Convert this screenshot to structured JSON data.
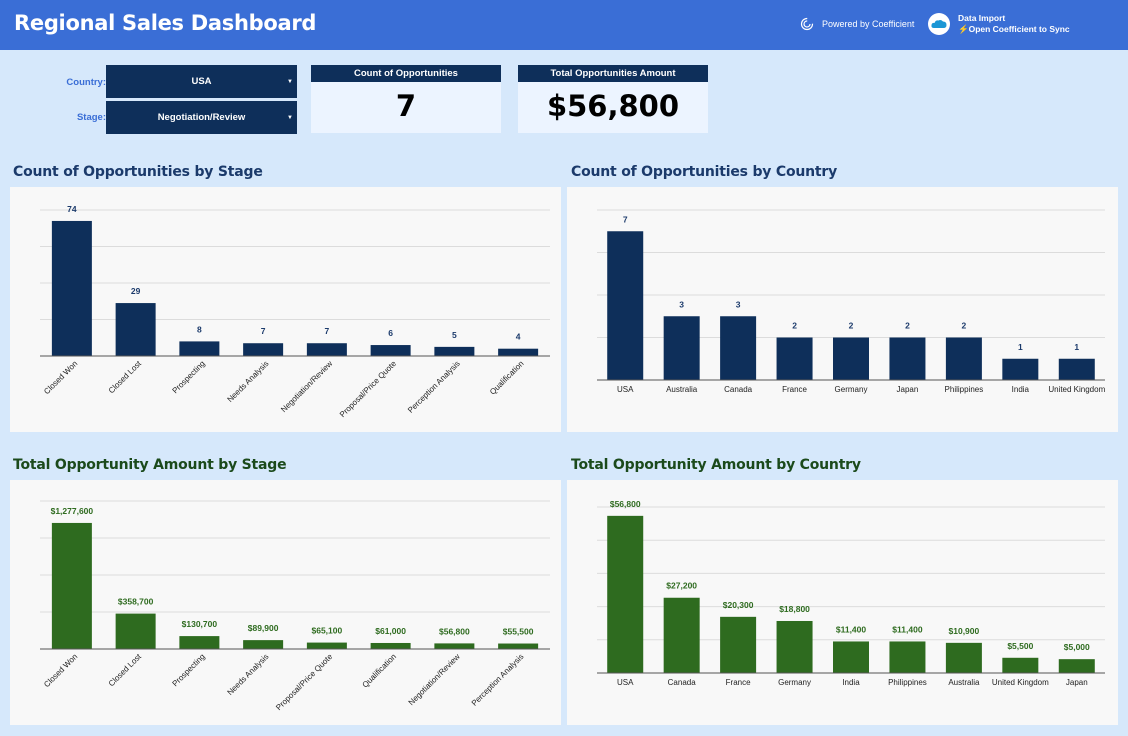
{
  "header": {
    "title": "Regional Sales Dashboard",
    "powered_by": "Powered by Coefficient",
    "data_import": "Data Import",
    "sync_text": "⚡Open Coefficient to Sync",
    "background_color": "#3a6ed6"
  },
  "filters": {
    "country_label": "Country:",
    "country_value": "USA",
    "stage_label": "Stage:",
    "stage_value": "Negotiation/Review"
  },
  "scorecards": [
    {
      "label": "Count of Opportunities",
      "value": "7"
    },
    {
      "label": "Total Opportunities Amount",
      "value": "$56,800"
    }
  ],
  "sections": {
    "count_by_stage": "Count of Opportunities by Stage",
    "count_by_country": "Count of Opportunities by Country",
    "amount_by_stage": "Total Opportunity Amount by Stage",
    "amount_by_country": "Total Opportunity Amount by Country"
  },
  "colors": {
    "navy_bar": "#0e2f5a",
    "green_bar": "#2e6b1f",
    "green_label": "#2e6b1f",
    "navy_label": "#1b3a6b"
  },
  "chart_data": [
    {
      "type": "bar",
      "title": "Count of Opportunities by Stage",
      "categories": [
        "Closed Won",
        "Closed Lost",
        "Prospecting",
        "Needs Analysis",
        "Negotiation/Review",
        "Proposal/Price Quote",
        "Perception Analysis",
        "Qualification"
      ],
      "values": [
        74,
        29,
        8,
        7,
        7,
        6,
        5,
        4
      ],
      "value_labels": [
        "74",
        "29",
        "8",
        "7",
        "7",
        "6",
        "5",
        "4"
      ],
      "ylim": [
        0,
        80
      ],
      "grid": true,
      "color": "#0e2f5a",
      "rotated_labels": true
    },
    {
      "type": "bar",
      "title": "Count of Opportunities by Country",
      "categories": [
        "USA",
        "Australia",
        "Canada",
        "France",
        "Germany",
        "Japan",
        "Philippines",
        "India",
        "United Kingdom"
      ],
      "values": [
        7,
        3,
        3,
        2,
        2,
        2,
        2,
        1,
        1
      ],
      "value_labels": [
        "7",
        "3",
        "3",
        "2",
        "2",
        "2",
        "2",
        "1",
        "1"
      ],
      "ylim": [
        0,
        8
      ],
      "grid": true,
      "color": "#0e2f5a",
      "rotated_labels": false
    },
    {
      "type": "bar",
      "title": "Total Opportunity Amount by Stage",
      "categories": [
        "Closed Won",
        "Closed Lost",
        "Prospecting",
        "Needs Analysis",
        "Proposal/Price Quote",
        "Qualification",
        "Negotiation/Review",
        "Perception Analysis"
      ],
      "values": [
        1277600,
        358700,
        130700,
        89900,
        65100,
        61000,
        56800,
        55500
      ],
      "value_labels": [
        "$1,277,600",
        "$358,700",
        "$130,700",
        "$89,900",
        "$65,100",
        "$61,000",
        "$56,800",
        "$55,500"
      ],
      "ylim": [
        0,
        1500000
      ],
      "grid": true,
      "color": "#2e6b1f",
      "rotated_labels": true
    },
    {
      "type": "bar",
      "title": "Total Opportunity Amount by Country",
      "categories": [
        "USA",
        "Canada",
        "France",
        "Germany",
        "India",
        "Philippines",
        "Australia",
        "United Kingdom",
        "Japan"
      ],
      "values": [
        56800,
        27200,
        20300,
        18800,
        11400,
        11400,
        10900,
        5500,
        5000
      ],
      "value_labels": [
        "$56,800",
        "$27,200",
        "$20,300",
        "$18,800",
        "$11,400",
        "$11,400",
        "$10,900",
        "$5,500",
        "$5,000"
      ],
      "ylim": [
        0,
        60000
      ],
      "grid": true,
      "color": "#2e6b1f",
      "rotated_labels": false
    }
  ]
}
